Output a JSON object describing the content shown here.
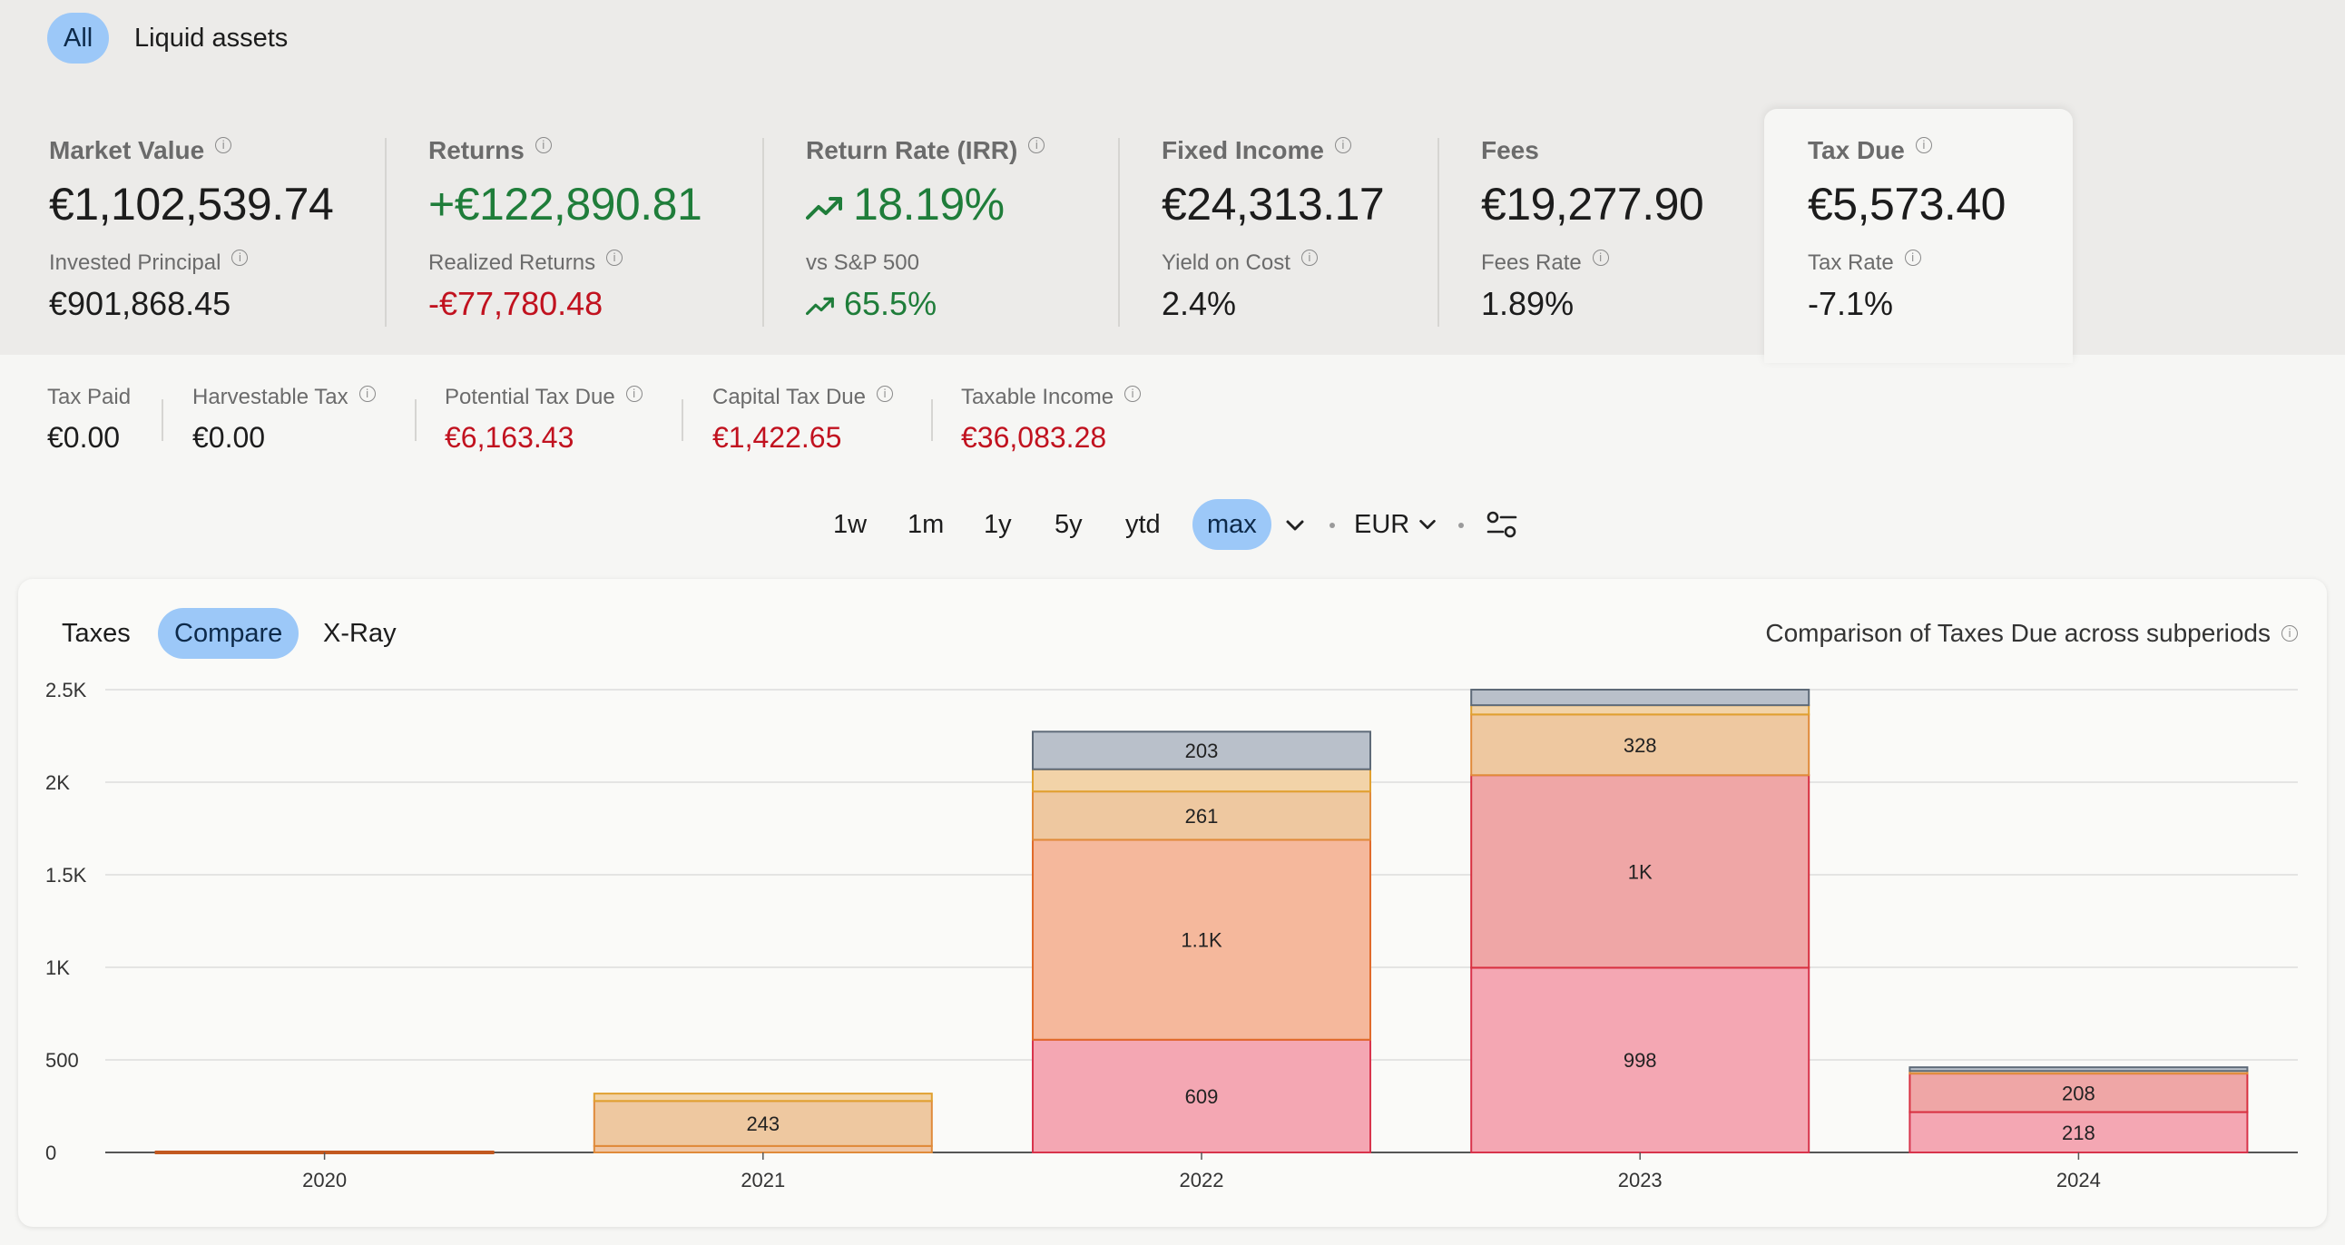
{
  "filters": [
    {
      "label": "All",
      "active": true
    },
    {
      "label": "Liquid assets",
      "active": false
    }
  ],
  "metrics": {
    "market_value": {
      "label": "Market Value",
      "value": "€1,102,539.74",
      "sublabel": "Invested Principal",
      "subvalue": "€901,868.45"
    },
    "returns": {
      "label": "Returns",
      "value": "+€122,890.81",
      "sublabel": "Realized Returns",
      "subvalue": "-€77,780.48"
    },
    "irr": {
      "label": "Return Rate (IRR)",
      "value": "18.19%",
      "sublabel": "vs S&P 500",
      "subvalue": "65.5%"
    },
    "fixed_income": {
      "label": "Fixed Income",
      "value": "€24,313.17",
      "sublabel": "Yield on Cost",
      "subvalue": "2.4%"
    },
    "fees": {
      "label": "Fees",
      "value": "€19,277.90",
      "sublabel": "Fees Rate",
      "subvalue": "1.89%"
    },
    "tax_due": {
      "label": "Tax Due",
      "value": "€5,573.40",
      "sublabel": "Tax Rate",
      "subvalue": "-7.1%"
    }
  },
  "tax_details": {
    "tax_paid": {
      "label": "Tax Paid",
      "value": "€0.00"
    },
    "harvestable": {
      "label": "Harvestable Tax",
      "value": "€0.00"
    },
    "potential": {
      "label": "Potential Tax Due",
      "value": "€6,163.43"
    },
    "capital": {
      "label": "Capital Tax Due",
      "value": "€1,422.65"
    },
    "taxable_income": {
      "label": "Taxable Income",
      "value": "€36,083.28"
    }
  },
  "periods": [
    "1w",
    "1m",
    "1y",
    "5y",
    "ytd",
    "max"
  ],
  "active_period": "max",
  "currency": "EUR",
  "tabs": [
    {
      "label": "Taxes",
      "active": false
    },
    {
      "label": "Compare",
      "active": true
    },
    {
      "label": "X-Ray",
      "active": false
    }
  ],
  "chart_title": "Comparison of Taxes Due across subperiods",
  "colors": {
    "accent": "#9cc8f8",
    "positive": "#1f7d3a",
    "negative": "#c1121f",
    "seg_pink": "#f4a7b3",
    "seg_rose": "#efa6a6",
    "seg_salmon": "#f5b89c",
    "seg_peach": "#eec8a0",
    "seg_light_peach": "#f2d3a8",
    "seg_grey": "#b9c0ca"
  },
  "chart_data": {
    "type": "bar",
    "stacked": true,
    "categories": [
      "2020",
      "2021",
      "2022",
      "2023",
      "2024"
    ],
    "ylim": [
      0,
      2500
    ],
    "yticks": [
      {
        "value": 0,
        "label": "0"
      },
      {
        "value": 500,
        "label": "500"
      },
      {
        "value": 1000,
        "label": "1K"
      },
      {
        "value": 1500,
        "label": "1.5K"
      },
      {
        "value": 2000,
        "label": "2K"
      },
      {
        "value": 2500,
        "label": "2.5K"
      }
    ],
    "grid": true,
    "bars": [
      {
        "category": "2020",
        "segments": [
          {
            "value": 5,
            "label": "",
            "color": "#e8a07a",
            "stroke": "#c2581f"
          }
        ]
      },
      {
        "category": "2021",
        "segments": [
          {
            "value": 35,
            "label": "",
            "color": "#efc5a3",
            "stroke": "#e08a3a"
          },
          {
            "value": 243,
            "label": "243",
            "color": "#eec8a0",
            "stroke": "#e08a3a"
          },
          {
            "value": 40,
            "label": "",
            "color": "#f2d3a8",
            "stroke": "#e0a030"
          }
        ]
      },
      {
        "category": "2022",
        "segments": [
          {
            "value": 609,
            "label": "609",
            "color": "#f4a7b3",
            "stroke": "#d8344c"
          },
          {
            "value": 1080,
            "label": "1.1K",
            "color": "#f5b89c",
            "stroke": "#e06a2a"
          },
          {
            "value": 261,
            "label": "261",
            "color": "#eec8a0",
            "stroke": "#e08a3a"
          },
          {
            "value": 120,
            "label": "",
            "color": "#f2d3a8",
            "stroke": "#e0a030"
          },
          {
            "value": 203,
            "label": "203",
            "color": "#b9c0ca",
            "stroke": "#5e6a78"
          }
        ]
      },
      {
        "category": "2023",
        "segments": [
          {
            "value": 998,
            "label": "998",
            "color": "#f4a7b3",
            "stroke": "#d8344c"
          },
          {
            "value": 1040,
            "label": "1K",
            "color": "#efa6a6",
            "stroke": "#d83040"
          },
          {
            "value": 328,
            "label": "328",
            "color": "#eec8a0",
            "stroke": "#e08a3a"
          },
          {
            "value": 50,
            "label": "",
            "color": "#f2d3a8",
            "stroke": "#e0a030"
          },
          {
            "value": 84,
            "label": "",
            "color": "#b9c0ca",
            "stroke": "#5e6a78"
          }
        ]
      },
      {
        "category": "2024",
        "segments": [
          {
            "value": 218,
            "label": "218",
            "color": "#f4a7b3",
            "stroke": "#d8344c"
          },
          {
            "value": 208,
            "label": "208",
            "color": "#efa6a6",
            "stroke": "#d83040"
          },
          {
            "value": 14,
            "label": "",
            "color": "#eec8a0",
            "stroke": "#e08a3a"
          },
          {
            "value": 20,
            "label": "",
            "color": "#b9c0ca",
            "stroke": "#5e6a78"
          }
        ]
      }
    ]
  }
}
